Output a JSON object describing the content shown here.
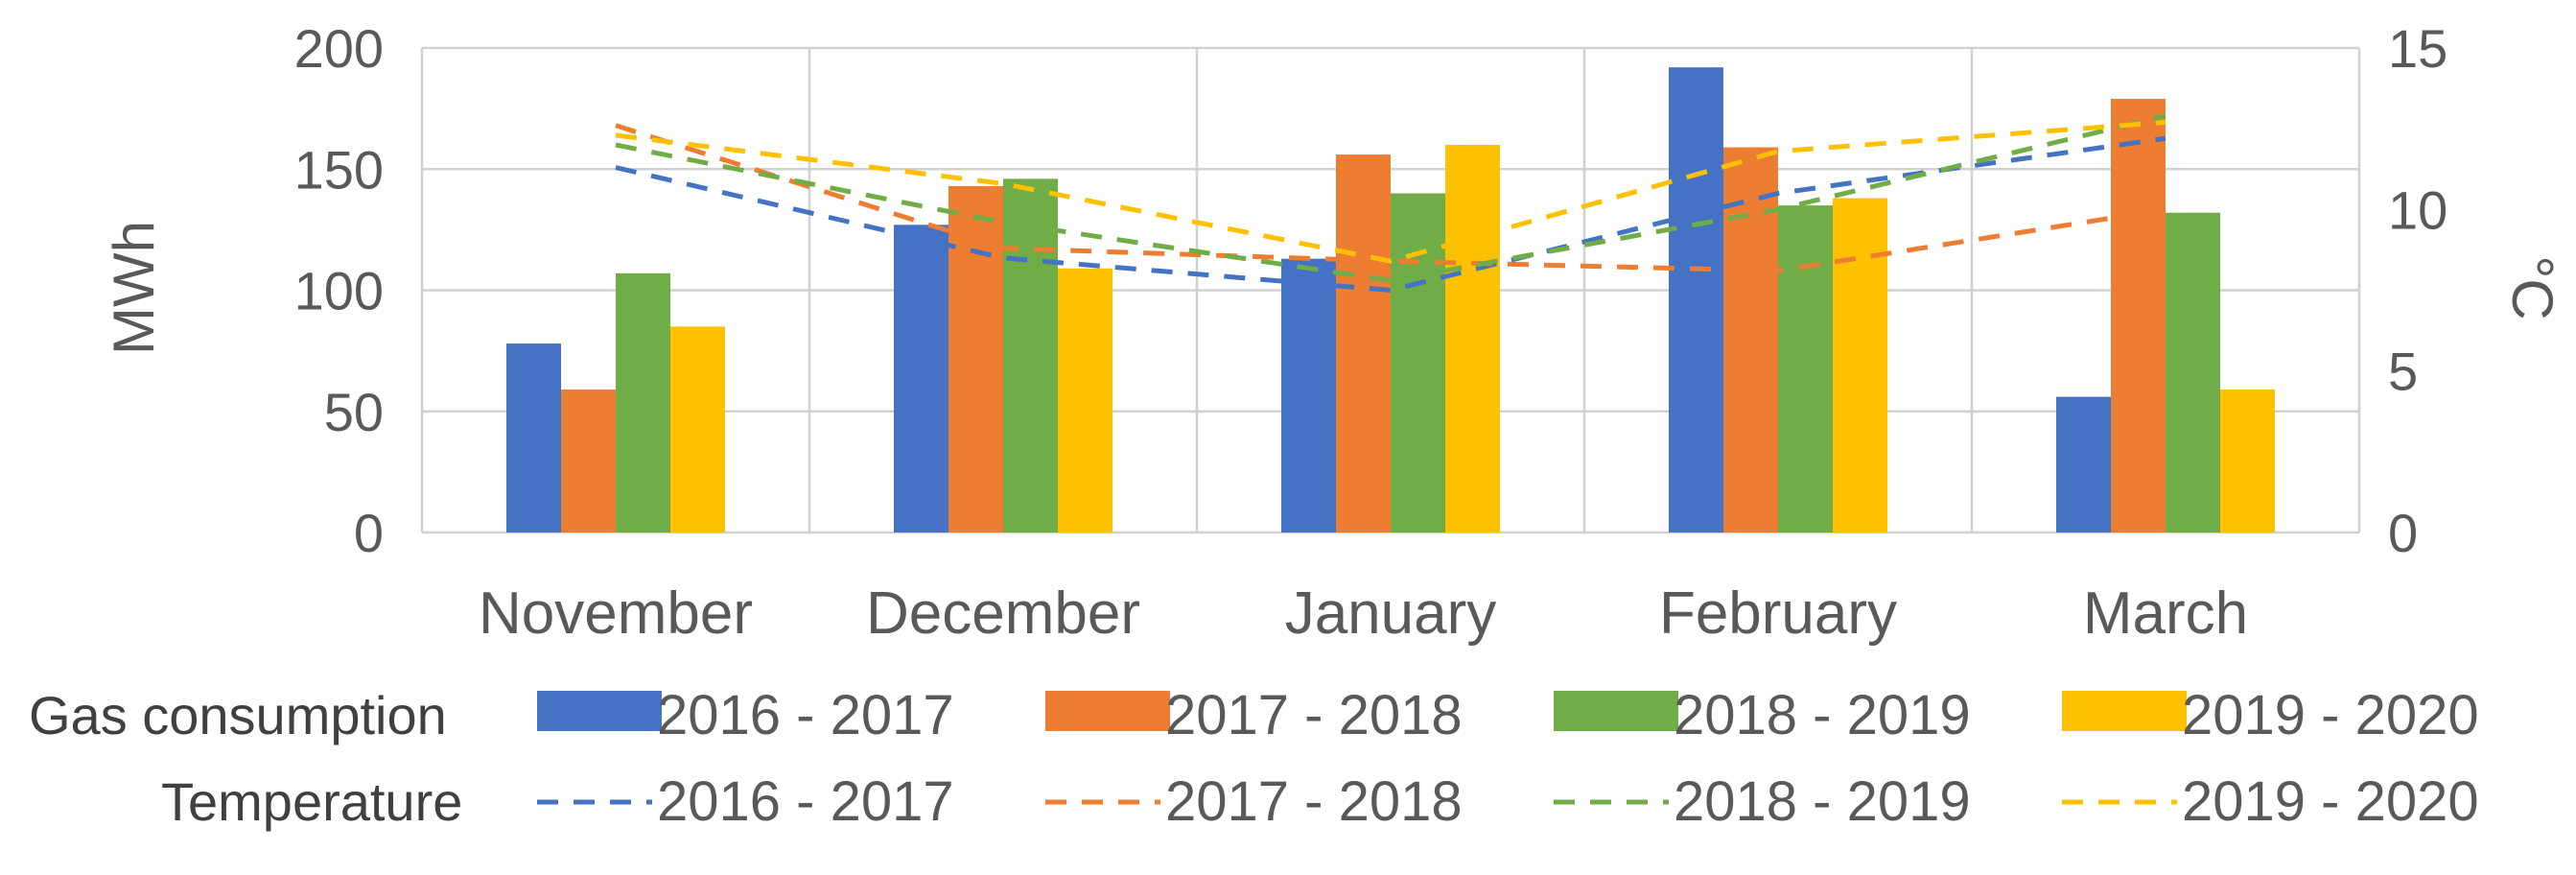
{
  "chart_data": {
    "type": "bar",
    "categories": [
      "November",
      "December",
      "January",
      "February",
      "March"
    ],
    "ylabel": "MWh",
    "ylim": [
      0,
      200
    ],
    "yticks": [
      "0",
      "50",
      "100",
      "150",
      "200"
    ],
    "y2label": "°C",
    "y2lim": [
      0,
      15
    ],
    "y2ticks": [
      "0",
      "5",
      "10",
      "15"
    ],
    "grid": true,
    "legend": {
      "bars_title": "Gas consumption",
      "lines_title": "Temperature",
      "placement": "bottom"
    },
    "series": [
      {
        "name": "2016 - 2017",
        "color": "#4472C4",
        "values": [
          78,
          127,
          113,
          192,
          56
        ]
      },
      {
        "name": "2017 - 2018",
        "color": "#ED7D31",
        "values": [
          59,
          143,
          156,
          159,
          179
        ]
      },
      {
        "name": "2018 - 2019",
        "color": "#70AD47",
        "values": [
          107,
          146,
          140,
          135,
          132
        ]
      },
      {
        "name": "2019 - 2020",
        "color": "#FFC000",
        "values": [
          85,
          109,
          160,
          138,
          59
        ]
      }
    ],
    "line_series": [
      {
        "name": "2016 - 2017",
        "color": "#4472C4",
        "axis": "right",
        "values": [
          11.3,
          8.5,
          7.5,
          10.5,
          12.2
        ]
      },
      {
        "name": "2017 - 2018",
        "color": "#ED7D31",
        "axis": "right",
        "values": [
          12.6,
          8.8,
          8.4,
          8.1,
          10.0
        ]
      },
      {
        "name": "2018 - 2019",
        "color": "#70AD47",
        "axis": "right",
        "values": [
          12.0,
          9.6,
          7.8,
          10.0,
          12.9
        ]
      },
      {
        "name": "2019 - 2020",
        "color": "#FFC000",
        "axis": "right",
        "values": [
          12.3,
          10.8,
          8.4,
          11.8,
          12.7
        ]
      }
    ]
  }
}
